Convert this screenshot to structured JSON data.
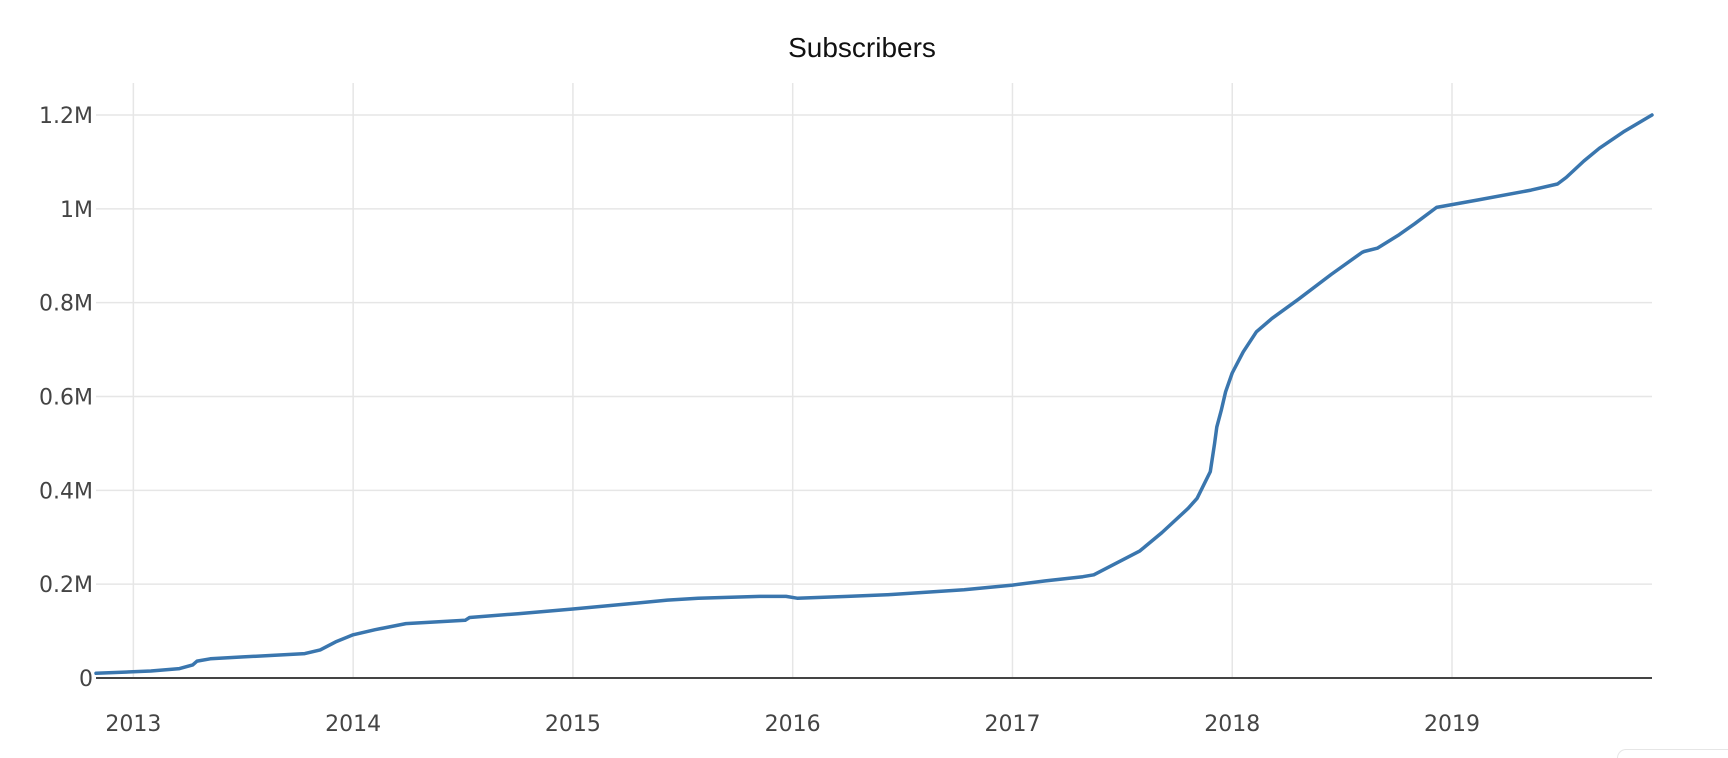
{
  "chart_data": {
    "type": "line",
    "title": "Subscribers",
    "xlabel": "",
    "ylabel": "",
    "xlim": [
      2012.83,
      2019.91
    ],
    "ylim": [
      0,
      1200000
    ],
    "grid": true,
    "line_color": "#3a76ae",
    "x_ticks": [
      2013,
      2014,
      2015,
      2016,
      2017,
      2018,
      2019
    ],
    "x_tick_labels": [
      "2013",
      "2014",
      "2015",
      "2016",
      "2017",
      "2018",
      "2019"
    ],
    "y_ticks": [
      0,
      200000,
      400000,
      600000,
      800000,
      1000000,
      1200000
    ],
    "y_tick_labels": [
      "0",
      "0.2M",
      "0.4M",
      "0.6M",
      "0.8M",
      "1M",
      "1.2M"
    ],
    "series": [
      {
        "x": [
          2012.83,
          2013.08,
          2013.21,
          2013.27,
          2013.29,
          2013.35,
          2013.5,
          2013.78,
          2013.85,
          2013.92,
          2014.0,
          2014.1,
          2014.24,
          2014.51,
          2014.53,
          2014.75,
          2015.0,
          2015.25,
          2015.43,
          2015.57,
          2015.85,
          2015.97,
          2016.02,
          2016.25,
          2016.45,
          2016.78,
          2017.0,
          2017.15,
          2017.32,
          2017.37,
          2017.58,
          2017.68,
          2017.8,
          2017.84,
          2017.9,
          2017.92,
          2017.93,
          2017.95,
          2017.97,
          2018.0,
          2018.05,
          2018.11,
          2018.18,
          2018.3,
          2018.45,
          2018.59,
          2018.6,
          2018.66,
          2018.76,
          2018.83,
          2018.93,
          2019.12,
          2019.36,
          2019.48,
          2019.52,
          2019.6,
          2019.67,
          2019.78,
          2019.91
        ],
        "values": [
          10000,
          15000,
          20000,
          28000,
          36000,
          41000,
          45000,
          52000,
          60000,
          77000,
          92000,
          103000,
          116000,
          123000,
          129000,
          137000,
          147000,
          158000,
          166000,
          170000,
          174000,
          174000,
          170000,
          174000,
          178000,
          188000,
          198000,
          207000,
          216000,
          220000,
          271000,
          310000,
          362000,
          383000,
          440000,
          500000,
          535000,
          570000,
          610000,
          650000,
          695000,
          738000,
          766000,
          807000,
          860000,
          907000,
          909000,
          916000,
          945000,
          968000,
          1003000,
          1019000,
          1040000,
          1053000,
          1067000,
          1102000,
          1129000,
          1164000,
          1200000
        ]
      }
    ]
  }
}
